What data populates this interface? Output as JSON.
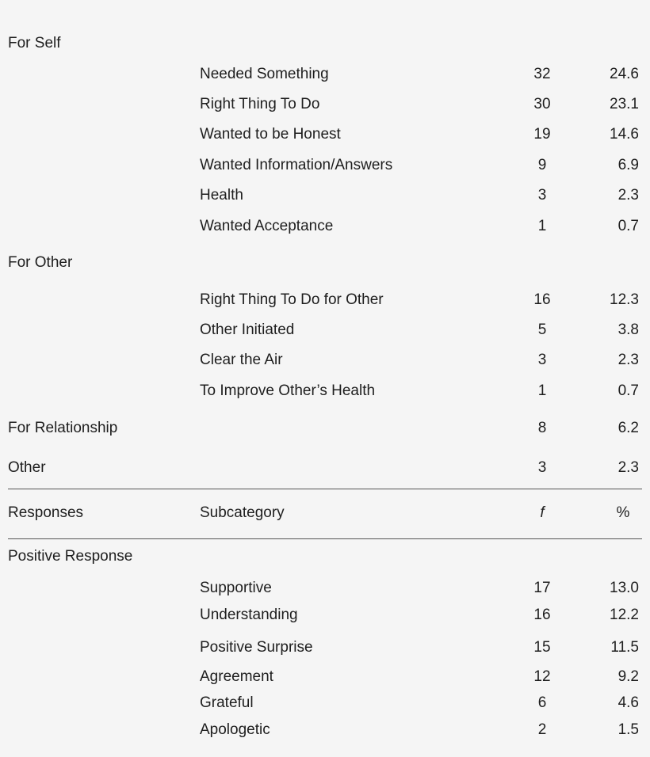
{
  "top_rows": [
    {
      "category": "For Self",
      "subcategory": "",
      "f": "",
      "pct": ""
    },
    {
      "category": "",
      "subcategory": "Needed Something",
      "f": "32",
      "pct": "24.6"
    },
    {
      "category": "",
      "subcategory": "Right Thing To Do",
      "f": "30",
      "pct": "23.1"
    },
    {
      "category": "",
      "subcategory": "Wanted to be Honest",
      "f": "19",
      "pct": "14.6"
    },
    {
      "category": "",
      "subcategory": "Wanted Information/Answers",
      "f": "9",
      "pct": "6.9"
    },
    {
      "category": "",
      "subcategory": "Health",
      "f": "3",
      "pct": "2.3"
    },
    {
      "category": "",
      "subcategory": "Wanted Acceptance",
      "f": "1",
      "pct": "0.7"
    },
    {
      "category": "For Other",
      "subcategory": "",
      "f": "",
      "pct": ""
    },
    {
      "category": "",
      "subcategory": "Right Thing To Do for Other",
      "f": "16",
      "pct": "12.3"
    },
    {
      "category": "",
      "subcategory": "Other Initiated",
      "f": "5",
      "pct": "3.8"
    },
    {
      "category": "",
      "subcategory": "Clear the Air",
      "f": "3",
      "pct": "2.3"
    },
    {
      "category": "",
      "subcategory": "To Improve Other’s Health",
      "f": "1",
      "pct": "0.7"
    },
    {
      "category": "For Relationship",
      "subcategory": "",
      "f": "8",
      "pct": "6.2"
    },
    {
      "category": "Other",
      "subcategory": "",
      "f": "3",
      "pct": "2.3"
    }
  ],
  "header": {
    "category": "Responses",
    "subcategory": "Subcategory",
    "f": "f",
    "pct": "%"
  },
  "bottom_rows": [
    {
      "category": "Positive Response",
      "subcategory": "",
      "f": "",
      "pct": ""
    },
    {
      "category": "",
      "subcategory": "Supportive",
      "f": "17",
      "pct": "13.0"
    },
    {
      "category": "",
      "subcategory": "Understanding",
      "f": "16",
      "pct": "12.2"
    },
    {
      "category": "",
      "subcategory": "Positive Surprise",
      "f": "15",
      "pct": "11.5"
    },
    {
      "category": "",
      "subcategory": "Agreement",
      "f": "12",
      "pct": "9.2"
    },
    {
      "category": "",
      "subcategory": "Grateful",
      "f": "6",
      "pct": "4.6"
    },
    {
      "category": "",
      "subcategory": "Apologetic",
      "f": "2",
      "pct": "1.5"
    }
  ]
}
